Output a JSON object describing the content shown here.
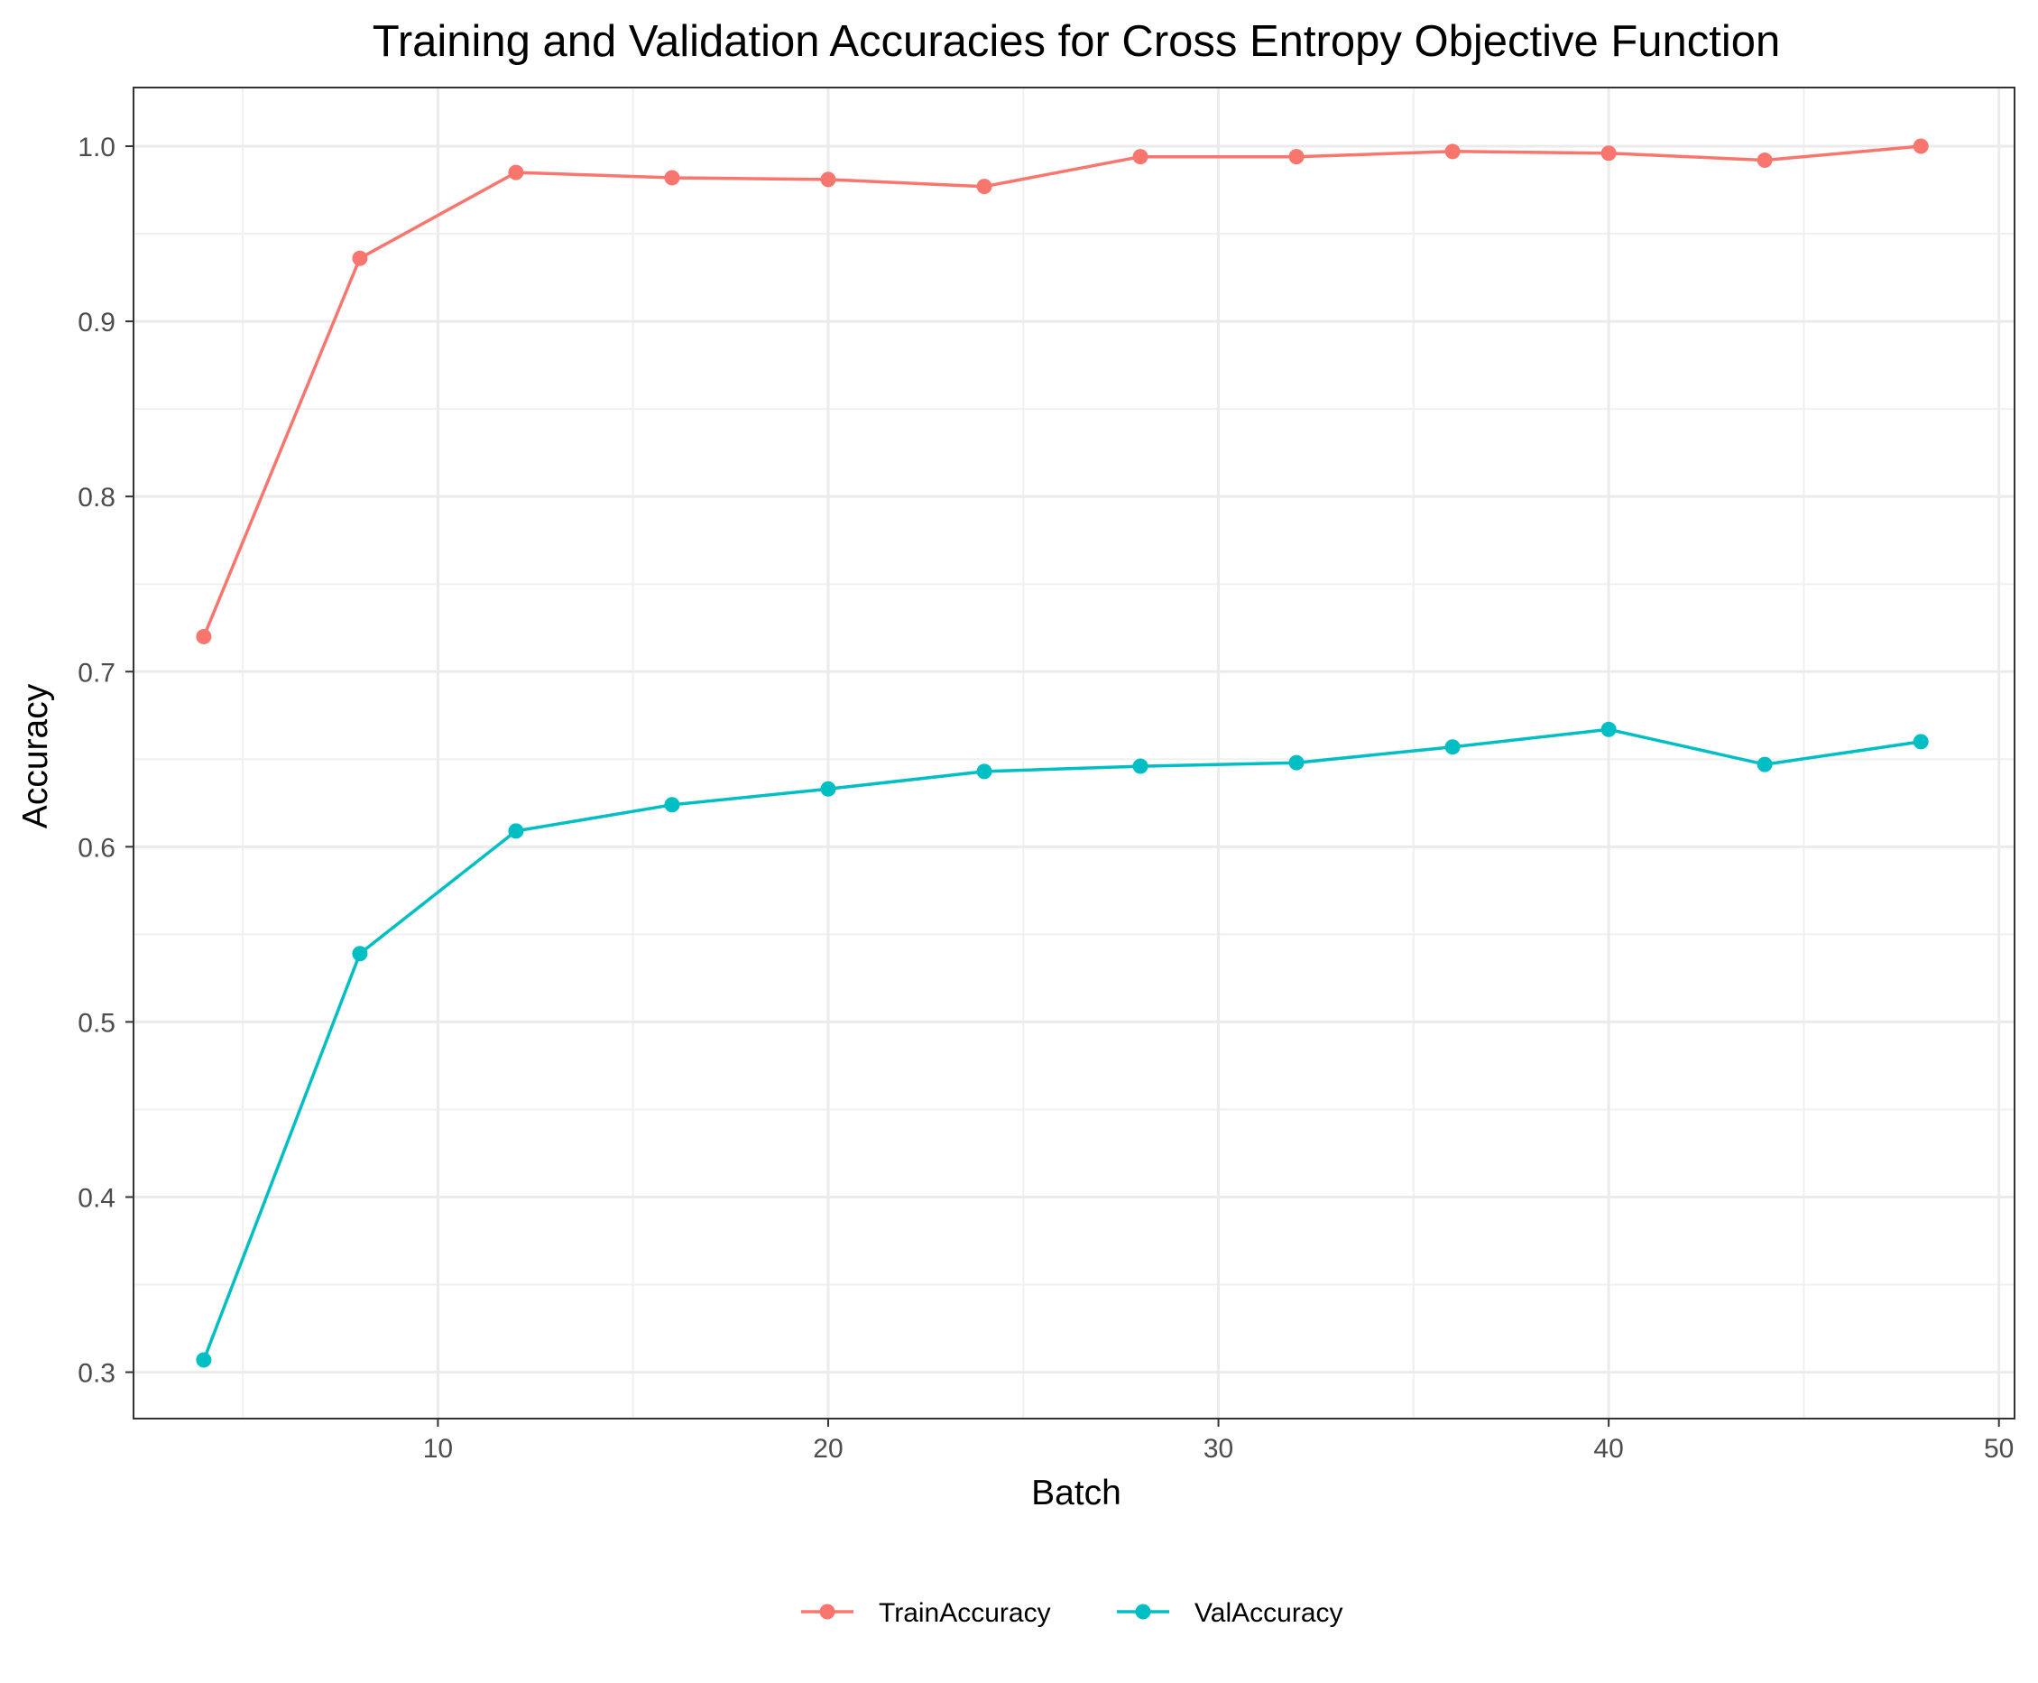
{
  "chart_data": {
    "type": "line",
    "title": "Training and Validation Accuracies for Cross Entropy Objective Function",
    "xlabel": "Batch",
    "ylabel": "Accuracy",
    "xlim": [
      2.2,
      50.4
    ],
    "ylim": [
      0.2735,
      1.0335
    ],
    "xticks": [
      10,
      20,
      30,
      40,
      50
    ],
    "xtick_labels": [
      "10",
      "20",
      "30",
      "40",
      "50"
    ],
    "yticks": [
      0.3,
      0.4,
      0.5,
      0.6,
      0.7,
      0.8,
      0.9,
      1.0
    ],
    "ytick_labels": [
      "0.3",
      "0.4",
      "0.5",
      "0.6",
      "0.7",
      "0.8",
      "0.9",
      "1.0"
    ],
    "grid": true,
    "legend_position": "bottom",
    "x": [
      4,
      8,
      12,
      16,
      20,
      24,
      28,
      32,
      36,
      40,
      44,
      48
    ],
    "series": [
      {
        "name": "TrainAccuracy",
        "color": "#F8766D",
        "values": [
          0.72,
          0.936,
          0.985,
          0.982,
          0.981,
          0.977,
          0.994,
          0.994,
          0.997,
          0.996,
          0.992,
          1.0
        ]
      },
      {
        "name": "ValAccuracy",
        "color": "#00BFC4",
        "values": [
          0.307,
          0.539,
          0.609,
          0.624,
          0.633,
          0.643,
          0.646,
          0.648,
          0.657,
          0.667,
          0.647,
          0.66
        ]
      }
    ]
  }
}
